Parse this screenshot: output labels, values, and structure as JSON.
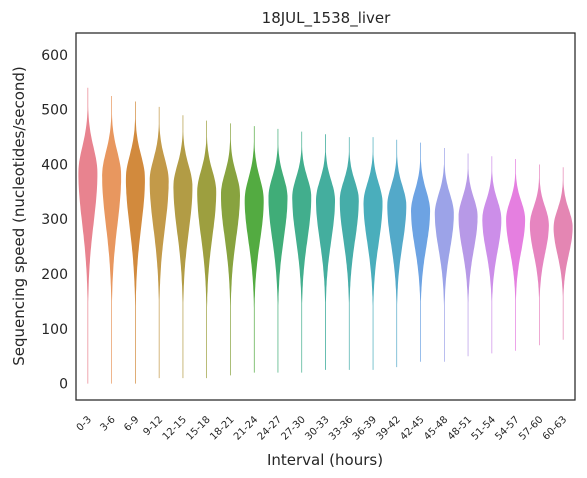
{
  "chart_data": {
    "type": "violin",
    "title": "18JUL_1538_liver",
    "xlabel": "Interval (hours)",
    "ylabel": "Sequencing speed (nucleotides/second)",
    "ylim": [
      -30,
      640
    ],
    "yticks": [
      0,
      100,
      200,
      300,
      400,
      500,
      600
    ],
    "grid": false,
    "categories": [
      "0-3",
      "3-6",
      "6-9",
      "9-12",
      "12-15",
      "15-18",
      "18-21",
      "21-24",
      "24-27",
      "27-30",
      "30-33",
      "33-36",
      "36-39",
      "39-42",
      "42-45",
      "45-48",
      "48-51",
      "51-54",
      "54-57",
      "57-60",
      "60-63"
    ],
    "medians": [
      385,
      380,
      375,
      370,
      360,
      350,
      345,
      335,
      340,
      340,
      335,
      335,
      330,
      325,
      315,
      310,
      305,
      300,
      300,
      290,
      285
    ],
    "min": [
      0,
      0,
      0,
      10,
      10,
      10,
      15,
      20,
      20,
      20,
      25,
      25,
      25,
      30,
      40,
      40,
      50,
      55,
      60,
      70,
      80
    ],
    "max": [
      540,
      525,
      515,
      505,
      490,
      480,
      475,
      470,
      465,
      460,
      455,
      450,
      450,
      445,
      440,
      430,
      420,
      415,
      410,
      400,
      395
    ],
    "colors": [
      "#e8838f",
      "#e8975f",
      "#d28a3d",
      "#c39a49",
      "#b29c45",
      "#9d9f3f",
      "#88a33f",
      "#53ab41",
      "#40ad78",
      "#42ae8d",
      "#44ae9e",
      "#46ada9",
      "#4aaebc",
      "#53a9c9",
      "#6da3e3",
      "#9ca3e8",
      "#b799e7",
      "#cc8ee9",
      "#e57fe0",
      "#e685c0",
      "#e486b3"
    ]
  }
}
